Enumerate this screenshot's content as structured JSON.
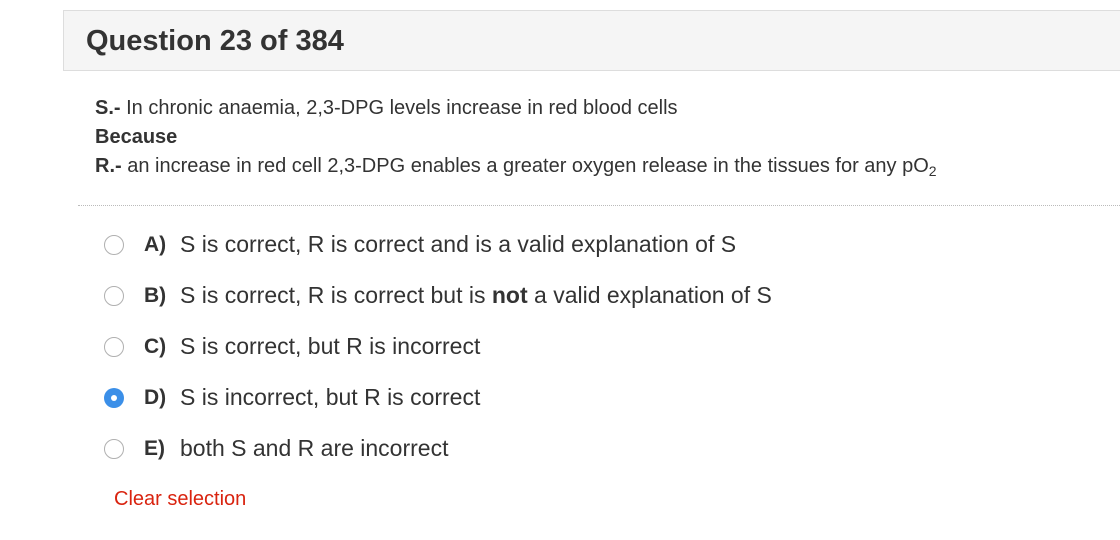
{
  "question": {
    "title": "Question 23 of 384"
  },
  "stem": {
    "s_label": "S.-",
    "s_text": "In chronic anaemia, 2,3-DPG levels increase in red blood cells",
    "because": "Because",
    "r_label": "R.-",
    "r_text": "an increase in red cell 2,3-DPG enables a greater oxygen release in the tissues for any pO",
    "r_subscript": "2"
  },
  "options": [
    {
      "letter": "A)",
      "text": "S is correct, R is correct and is a valid explanation of S",
      "selected": false
    },
    {
      "letter": "B)",
      "text_before": "S is correct, R is correct but is ",
      "text_bold": "not",
      "text_after": " a valid explanation of S",
      "selected": false
    },
    {
      "letter": "C)",
      "text": "S is correct, but R is incorrect",
      "selected": false
    },
    {
      "letter": "D)",
      "text": "S is incorrect, but R is correct",
      "selected": true
    },
    {
      "letter": "E)",
      "text": "both S and R are incorrect",
      "selected": false
    }
  ],
  "actions": {
    "clear_label": "Clear selection"
  },
  "colors": {
    "accent": "#3b8fe8",
    "clear_link": "#d9230f",
    "header_bg": "#f5f5f5"
  }
}
